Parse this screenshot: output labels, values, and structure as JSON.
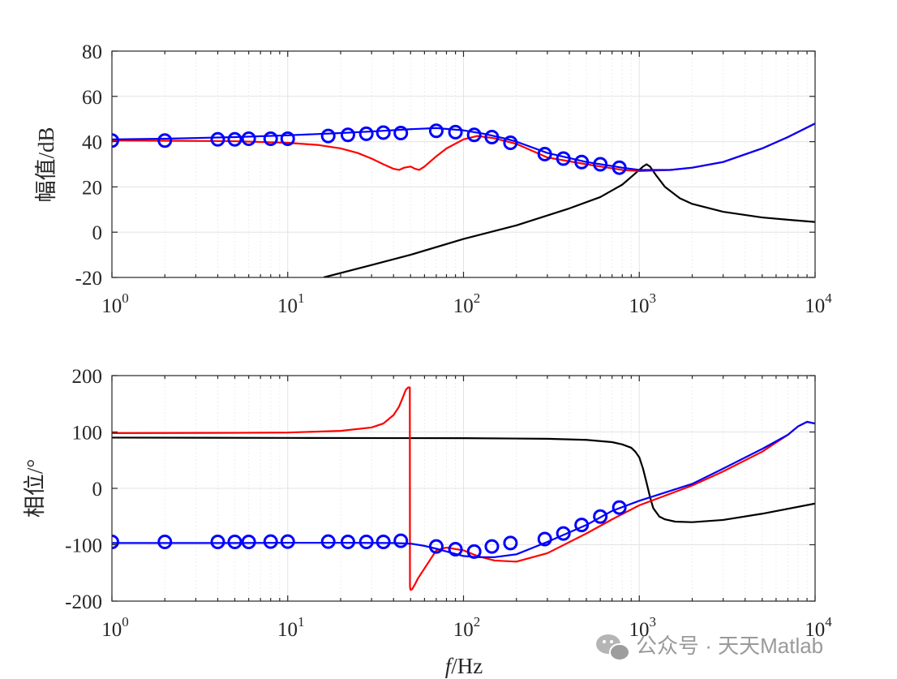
{
  "watermark": "公众号 · 天天Matlab",
  "colors": {
    "black": "#000000",
    "red": "#ff0000",
    "blue": "#0000ff"
  },
  "icons": {
    "watermark": "wechat-icon"
  },
  "chart_data": [
    {
      "type": "line",
      "ylabel": "幅值/dB",
      "xlabel": "",
      "xscale": "log",
      "xlim": [
        1,
        10000
      ],
      "ylim": [
        -20,
        80
      ],
      "grid": true,
      "yticks": [
        -20,
        0,
        20,
        40,
        60,
        80
      ],
      "yticklabels": [
        "-20",
        "0",
        "20",
        "40",
        "60",
        "80"
      ],
      "xticks": [
        1,
        10,
        100,
        1000,
        10000
      ],
      "xticklabels": [
        [
          "10",
          "0"
        ],
        [
          "10",
          "1"
        ],
        [
          "10",
          "2"
        ],
        [
          "10",
          "3"
        ],
        [
          "10",
          "4"
        ]
      ],
      "series": [
        {
          "color": "#000000",
          "style": "line",
          "x": [
            16,
            30,
            50,
            100,
            200,
            400,
            600,
            800,
            950,
            1050,
            1100,
            1150,
            1250,
            1400,
            1700,
            2000,
            3000,
            5000,
            7000,
            10000
          ],
          "y": [
            -20,
            -14.5,
            -10,
            -3,
            3,
            10.5,
            15.5,
            21,
            26,
            29,
            30,
            29,
            25,
            20,
            15,
            12.5,
            9,
            6.5,
            5.5,
            4.5
          ]
        },
        {
          "color": "#ff0000",
          "style": "line",
          "x": [
            1,
            2,
            5,
            10,
            15,
            20,
            25,
            30,
            35,
            40,
            43,
            46,
            50,
            53,
            56,
            60,
            70,
            80,
            100,
            120,
            150,
            200,
            300,
            500,
            800,
            1000,
            1500,
            2000,
            3000,
            5000,
            7000,
            10000
          ],
          "y": [
            40.5,
            40.4,
            40.2,
            39.5,
            38.5,
            37,
            35,
            32.5,
            30,
            28,
            27.5,
            28.5,
            29,
            28,
            27.5,
            29,
            33.5,
            37,
            41,
            42.5,
            41.5,
            39,
            33,
            30,
            27.5,
            27,
            27.5,
            28.5,
            31,
            37,
            42,
            48
          ]
        },
        {
          "color": "#0000ff",
          "style": "line",
          "x": [
            1,
            2,
            5,
            10,
            20,
            30,
            50,
            70,
            100,
            130,
            170,
            200,
            300,
            500,
            800,
            1000,
            1500,
            2000,
            3000,
            5000,
            7000,
            10000
          ],
          "y": [
            41,
            41.3,
            42,
            42.8,
            43.8,
            44.5,
            45.5,
            46,
            45,
            43.5,
            41.5,
            40,
            35,
            31,
            28.5,
            27.5,
            27.5,
            28.5,
            31,
            37,
            42,
            48
          ]
        },
        {
          "color": "#0000ff",
          "style": "marker-circle",
          "x": [
            1,
            2,
            4,
            5,
            6,
            8,
            10,
            17,
            22,
            28,
            35,
            44,
            70,
            90,
            115,
            145,
            185,
            290,
            370,
            470,
            600,
            770
          ],
          "y": [
            40.5,
            40.5,
            41,
            41,
            41.3,
            41.3,
            41.3,
            42.5,
            43,
            43.5,
            44,
            43.8,
            44.8,
            44.2,
            43,
            42,
            39.5,
            34.5,
            32.5,
            31,
            30,
            28.5
          ]
        }
      ]
    },
    {
      "type": "line",
      "ylabel": "相位/°",
      "xlabel": "f/Hz",
      "xscale": "log",
      "xlim": [
        1,
        10000
      ],
      "ylim": [
        -200,
        200
      ],
      "grid": true,
      "yticks": [
        -200,
        -100,
        0,
        100,
        200
      ],
      "yticklabels": [
        "-200",
        "-100",
        "0",
        "100",
        "200"
      ],
      "xticks": [
        1,
        10,
        100,
        1000,
        10000
      ],
      "xticklabels": [
        [
          "10",
          "0"
        ],
        [
          "10",
          "1"
        ],
        [
          "10",
          "2"
        ],
        [
          "10",
          "3"
        ],
        [
          "10",
          "4"
        ]
      ],
      "series": [
        {
          "color": "#000000",
          "style": "line",
          "x": [
            1,
            10,
            100,
            300,
            500,
            700,
            800,
            900,
            950,
            1000,
            1050,
            1100,
            1150,
            1200,
            1300,
            1400,
            1600,
            2000,
            3000,
            5000,
            10000
          ],
          "y": [
            90,
            89.5,
            89,
            88,
            86,
            82,
            78,
            72,
            65,
            55,
            35,
            10,
            -15,
            -35,
            -50,
            -55,
            -59,
            -60,
            -56,
            -45,
            -27
          ]
        },
        {
          "color": "#ff0000",
          "style": "line",
          "x": [
            1,
            5,
            10,
            20,
            30,
            35,
            40,
            43,
            45,
            47,
            48.5,
            49.5,
            49.6,
            50,
            51,
            53,
            55,
            60,
            70,
            80,
            100,
            120,
            150,
            200,
            300,
            500,
            700,
            1000,
            2000,
            3000,
            5000,
            7000,
            8000,
            9000,
            10000
          ],
          "y": [
            98,
            98.5,
            99,
            102,
            108,
            115,
            130,
            145,
            160,
            175,
            179,
            179,
            -175,
            -180,
            -179,
            -170,
            -160,
            -142,
            -110,
            -105,
            -110,
            -120,
            -128,
            -130,
            -115,
            -80,
            -55,
            -30,
            5,
            30,
            65,
            95,
            110,
            118,
            115
          ]
        },
        {
          "color": "#0000ff",
          "style": "line",
          "x": [
            1,
            5,
            10,
            20,
            40,
            50,
            60,
            70,
            80,
            100,
            120,
            150,
            200,
            300,
            500,
            700,
            1000,
            2000,
            3000,
            5000,
            7000,
            8000,
            9000,
            10000
          ],
          "y": [
            -97,
            -97,
            -96.5,
            -96.5,
            -97,
            -98,
            -102,
            -107,
            -112,
            -120,
            -122,
            -122,
            -117,
            -95,
            -65,
            -40,
            -22,
            8,
            35,
            70,
            95,
            110,
            118,
            115
          ]
        },
        {
          "color": "#0000ff",
          "style": "marker-circle",
          "x": [
            1,
            2,
            4,
            5,
            6,
            8,
            10,
            17,
            22,
            28,
            35,
            44,
            70,
            90,
            115,
            145,
            185,
            290,
            370,
            470,
            600,
            770
          ],
          "y": [
            -95,
            -95,
            -95,
            -95,
            -95,
            -94.5,
            -94.5,
            -94.5,
            -95,
            -95,
            -95,
            -93,
            -103,
            -108,
            -112,
            -103,
            -97,
            -90,
            -80,
            -65,
            -50,
            -34
          ]
        }
      ]
    }
  ]
}
